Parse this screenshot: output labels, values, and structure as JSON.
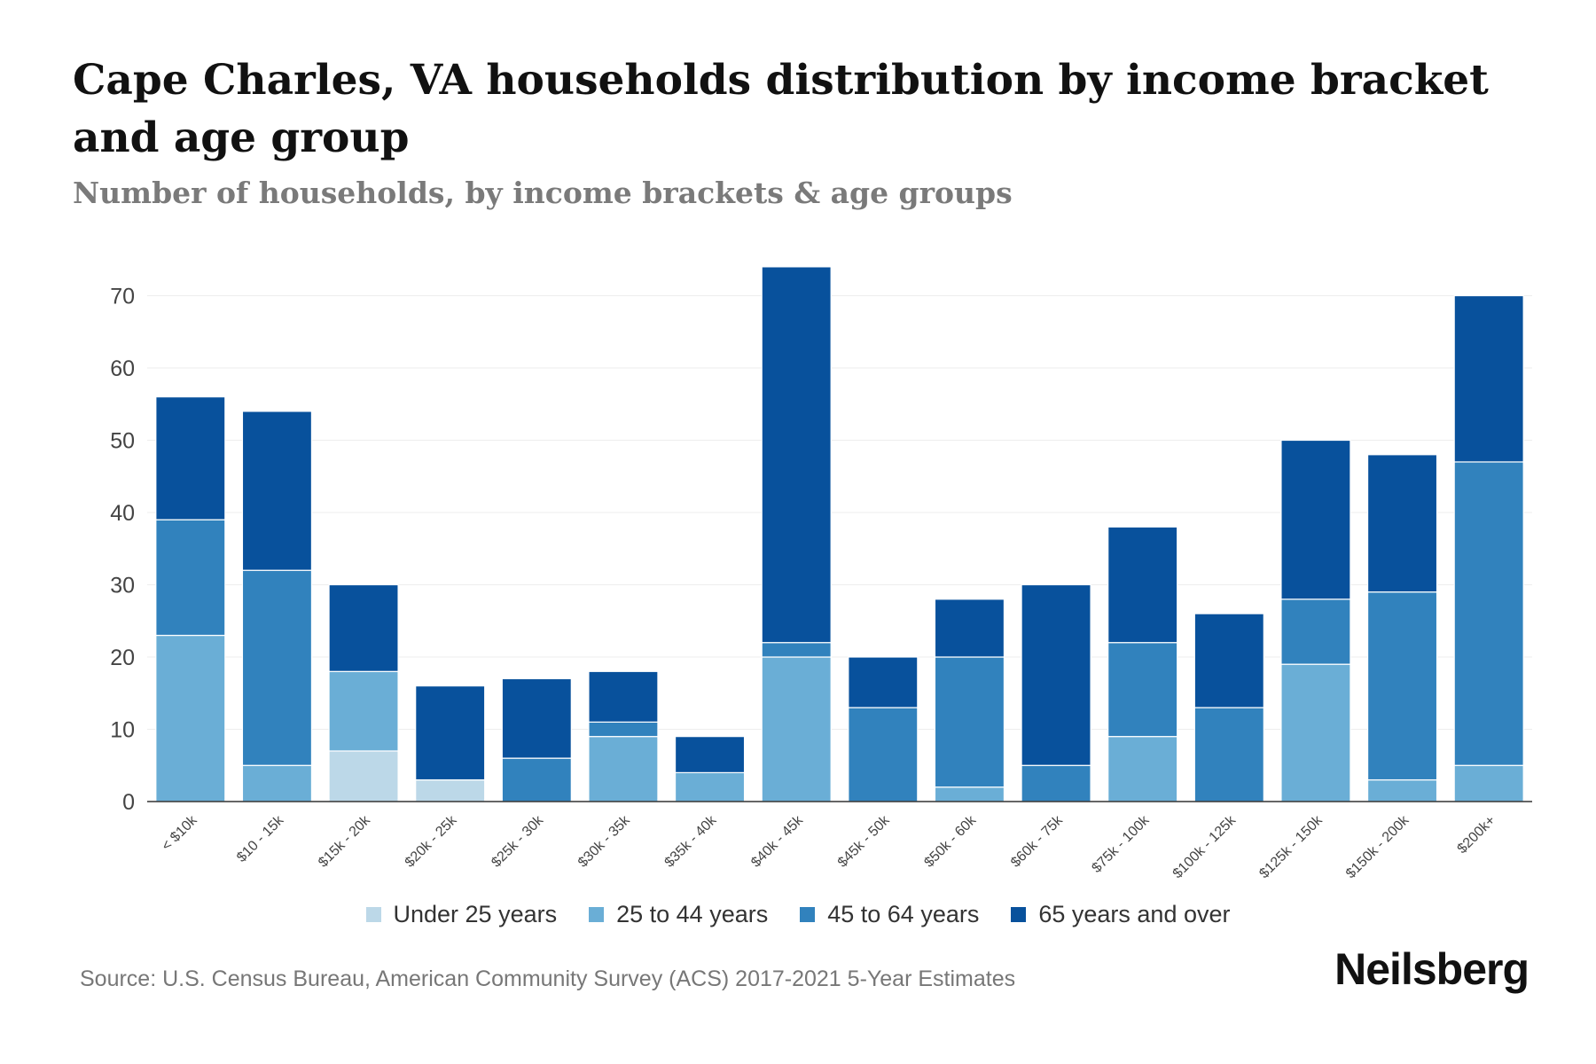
{
  "title": "Cape Charles, VA households distribution by income bracket and age group",
  "subtitle": "Number of households, by income brackets & age groups",
  "source": "Source: U.S. Census Bureau, American Community Survey (ACS) 2017-2021 5-Year Estimates",
  "brand": "Neilsberg",
  "colors": {
    "under_25": "#bcd8e8",
    "age_25_44": "#6aaed6",
    "age_45_64": "#3182bd",
    "age_65_plus": "#08519c",
    "gridline": "#eeeeee",
    "axis": "#333333"
  },
  "chart_data": {
    "type": "bar",
    "stacked": true,
    "title": "Cape Charles, VA households distribution by income bracket and age group",
    "subtitle": "Number of households, by income brackets & age groups",
    "xlabel": "",
    "ylabel": "",
    "ylim": [
      0,
      75
    ],
    "yticks": [
      0,
      10,
      20,
      30,
      40,
      50,
      60,
      70
    ],
    "grid": true,
    "legend_position": "bottom",
    "categories": [
      "< $10k",
      "$10 - 15k",
      "$15k - 20k",
      "$20k - 25k",
      "$25k - 30k",
      "$30k - 35k",
      "$35k - 40k",
      "$40k - 45k",
      "$45k - 50k",
      "$50k - 60k",
      "$60k - 75k",
      "$75k - 100k",
      "$100k - 125k",
      "$125k - 150k",
      "$150k - 200k",
      "$200k+"
    ],
    "series": [
      {
        "name": "Under 25 years",
        "color_key": "under_25",
        "values": [
          0,
          0,
          7,
          3,
          0,
          0,
          0,
          0,
          0,
          0,
          0,
          0,
          0,
          0,
          0,
          0
        ]
      },
      {
        "name": "25 to 44 years",
        "color_key": "age_25_44",
        "values": [
          23,
          5,
          11,
          0,
          0,
          9,
          4,
          20,
          0,
          2,
          0,
          9,
          0,
          19,
          3,
          5
        ]
      },
      {
        "name": "45 to 64 years",
        "color_key": "age_45_64",
        "values": [
          16,
          27,
          0,
          0,
          6,
          2,
          0,
          2,
          13,
          18,
          5,
          13,
          13,
          9,
          26,
          42
        ]
      },
      {
        "name": "65 years and over",
        "color_key": "age_65_plus",
        "values": [
          17,
          22,
          12,
          13,
          11,
          7,
          5,
          52,
          7,
          8,
          25,
          16,
          13,
          22,
          19,
          23
        ]
      }
    ]
  }
}
